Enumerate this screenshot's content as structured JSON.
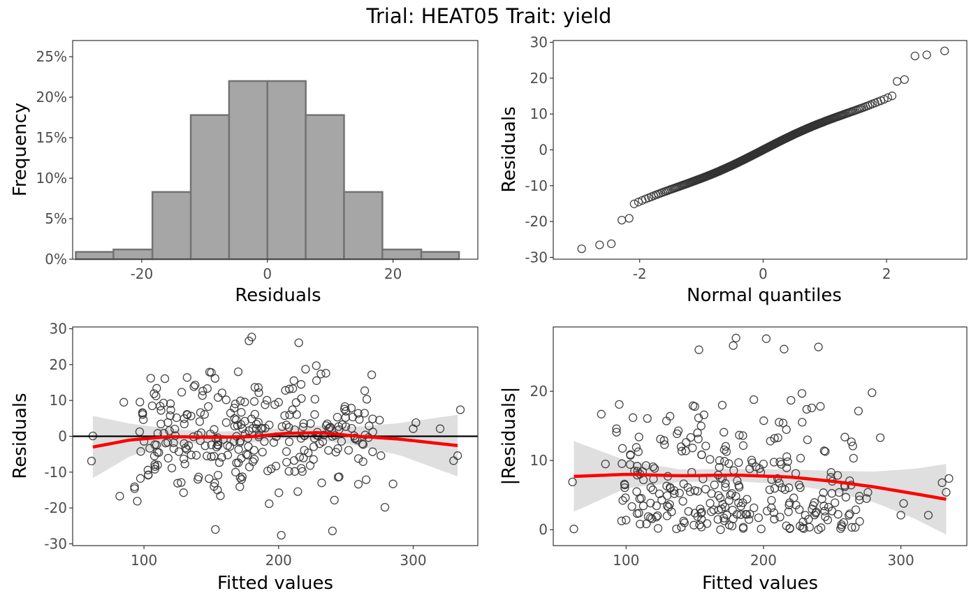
{
  "title": "Trial: HEAT05 Trait: yield",
  "colors": {
    "bar_fill": "#a6a6a6",
    "bar_stroke": "#737373",
    "point_stroke": "#333333",
    "smooth_line": "#ff0000",
    "confidence_band": "#d9d9d9",
    "reference_line": "#000000",
    "tick_text": "#4d4d4d"
  },
  "chart_data": [
    {
      "id": "histogram",
      "type": "bar",
      "xlabel": "Residuals",
      "ylabel": "Frequency",
      "xlim": [
        -31,
        33.5
      ],
      "ylim": [
        0,
        0.27
      ],
      "x_ticks": [
        -20,
        0,
        20
      ],
      "x_tick_labels": [
        "-20",
        "0",
        "20"
      ],
      "y_ticks": [
        0,
        0.05,
        0.1,
        0.15,
        0.2,
        0.25
      ],
      "y_tick_labels": [
        "0%",
        "5%",
        "10%",
        "15%",
        "20%",
        "25%"
      ],
      "bins": [
        {
          "from": -30.5,
          "to": -24.5,
          "value": 0.009
        },
        {
          "from": -24.5,
          "to": -18.3,
          "value": 0.012
        },
        {
          "from": -18.3,
          "to": -12.2,
          "value": 0.083
        },
        {
          "from": -12.2,
          "to": -6.1,
          "value": 0.178
        },
        {
          "from": -6.1,
          "to": 0.0,
          "value": 0.22
        },
        {
          "from": 0.0,
          "to": 6.1,
          "value": 0.22
        },
        {
          "from": 6.1,
          "to": 12.2,
          "value": 0.178
        },
        {
          "from": 12.2,
          "to": 18.3,
          "value": 0.083
        },
        {
          "from": 18.3,
          "to": 24.5,
          "value": 0.012
        },
        {
          "from": 24.5,
          "to": 30.5,
          "value": 0.009
        }
      ]
    },
    {
      "id": "qq",
      "type": "scatter",
      "xlabel": "Normal quantiles",
      "ylabel": "Residuals",
      "xlim": [
        -3.4,
        3.3
      ],
      "ylim": [
        -30.5,
        30.5
      ],
      "x_ticks": [
        -2,
        0,
        2
      ],
      "x_tick_labels": [
        "-2",
        "0",
        "2"
      ],
      "y_ticks": [
        -30,
        -20,
        -10,
        0,
        10,
        20,
        30
      ],
      "y_tick_labels": [
        "-30",
        "-20",
        "-10",
        "0",
        "10",
        "20",
        "30"
      ],
      "n_points": 300,
      "extremes": [
        [
          -2.94,
          -27.6
        ],
        [
          -2.65,
          -26.5
        ],
        [
          -2.46,
          -26.2
        ],
        [
          -2.29,
          -19.6
        ],
        [
          -2.17,
          -19.1
        ],
        [
          2.17,
          19.1
        ],
        [
          2.29,
          19.6
        ],
        [
          2.46,
          26.2
        ],
        [
          2.65,
          26.5
        ],
        [
          2.94,
          27.6
        ]
      ],
      "slope": 7.5
    },
    {
      "id": "resid_vs_fitted",
      "type": "scatter",
      "xlabel": "Fitted values",
      "ylabel": "Residuals",
      "xlim": [
        47,
        348
      ],
      "ylim": [
        -30.5,
        30.5
      ],
      "x_ticks": [
        100,
        200,
        300
      ],
      "x_tick_labels": [
        "100",
        "200",
        "300"
      ],
      "y_ticks": [
        -30,
        -20,
        -10,
        0,
        10,
        20,
        30
      ],
      "y_tick_labels": [
        "-30",
        "-20",
        "-10",
        "0",
        "10",
        "20",
        "30"
      ],
      "reference_line_y": 0,
      "smooth": {
        "x": [
          62,
          90,
          120,
          150,
          180,
          205,
          230,
          260,
          290,
          333
        ],
        "y": [
          -3.0,
          -1.0,
          -0.1,
          -0.3,
          -0.1,
          0.8,
          1.0,
          0.0,
          -0.8,
          -2.6
        ],
        "band_halfwidth": [
          8.7,
          4.5,
          2.2,
          1.6,
          1.6,
          1.6,
          2.0,
          2.7,
          4.5,
          8.6
        ]
      },
      "points": [
        [
          62,
          0.1
        ],
        [
          61,
          -6.9
        ],
        [
          82,
          -16.7
        ],
        [
          85,
          9.5
        ],
        [
          93,
          -14.1
        ],
        [
          93,
          -14.6
        ],
        [
          95,
          -18.1
        ],
        [
          105,
          16.2
        ],
        [
          108,
          -7.9
        ],
        [
          100,
          -1.4
        ],
        [
          112,
          8.4
        ],
        [
          118,
          -6.1
        ],
        [
          125,
          -13.1
        ],
        [
          128,
          12.3
        ],
        [
          132,
          16.4
        ],
        [
          138,
          14.3
        ],
        [
          140,
          -12.0
        ],
        [
          145,
          6.1
        ],
        [
          150,
          17.8
        ],
        [
          152,
          -14.0
        ],
        [
          153,
          -26.0
        ],
        [
          158,
          12.1
        ],
        [
          162,
          -2.6
        ],
        [
          167,
          7.9
        ],
        [
          168,
          -10.0
        ],
        [
          170,
          18.0
        ],
        [
          175,
          4.2
        ],
        [
          178,
          26.6
        ],
        [
          180,
          27.7
        ],
        [
          182,
          -6.4
        ],
        [
          185,
          13.6
        ],
        [
          188,
          -4.4
        ],
        [
          190,
          8.8
        ],
        [
          193,
          -18.8
        ],
        [
          198,
          -8.3
        ],
        [
          200,
          9.5
        ],
        [
          202,
          -27.6
        ],
        [
          205,
          12.8
        ],
        [
          208,
          13.2
        ],
        [
          212,
          -9.8
        ],
        [
          215,
          26.1
        ],
        [
          220,
          18.7
        ],
        [
          222,
          -4.6
        ],
        [
          228,
          19.7
        ],
        [
          232,
          -13.0
        ],
        [
          238,
          2.4
        ],
        [
          240,
          -26.4
        ],
        [
          245,
          -11.3
        ],
        [
          250,
          7.0
        ],
        [
          252,
          -3.9
        ],
        [
          260,
          4.7
        ],
        [
          264,
          12.7
        ],
        [
          265,
          -12.1
        ],
        [
          270,
          1.2
        ],
        [
          275,
          4.5
        ],
        [
          276,
          -5.4
        ],
        [
          279,
          -19.8
        ],
        [
          285,
          -13.3
        ],
        [
          300,
          2.1
        ],
        [
          302,
          3.8
        ],
        [
          320,
          2.1
        ],
        [
          330,
          -6.8
        ],
        [
          333,
          -5.4
        ],
        [
          335,
          7.4
        ]
      ],
      "bulk": {
        "n": 240,
        "x_range": [
          95,
          270
        ],
        "y_sd": 8
      }
    },
    {
      "id": "abs_resid_vs_fitted",
      "type": "scatter",
      "xlabel": "Fitted values",
      "ylabel": "|Residuals|",
      "xlim": [
        47,
        348
      ],
      "ylim": [
        -2.3,
        29.3
      ],
      "x_ticks": [
        100,
        200,
        300
      ],
      "x_tick_labels": [
        "100",
        "200",
        "300"
      ],
      "y_ticks": [
        0,
        10,
        20
      ],
      "y_tick_labels": [
        "0",
        "10",
        "20"
      ],
      "smooth": {
        "x": [
          62,
          100,
          140,
          180,
          220,
          250,
          280,
          310,
          333
        ],
        "y": [
          7.7,
          8.0,
          7.8,
          7.9,
          7.6,
          7.0,
          6.2,
          5.2,
          4.4
        ],
        "band_halfwidth": [
          5.1,
          2.0,
          0.9,
          0.9,
          1.1,
          1.5,
          2.2,
          3.6,
          5.1
        ]
      },
      "points": "abs of resid_vs_fitted points"
    }
  ]
}
